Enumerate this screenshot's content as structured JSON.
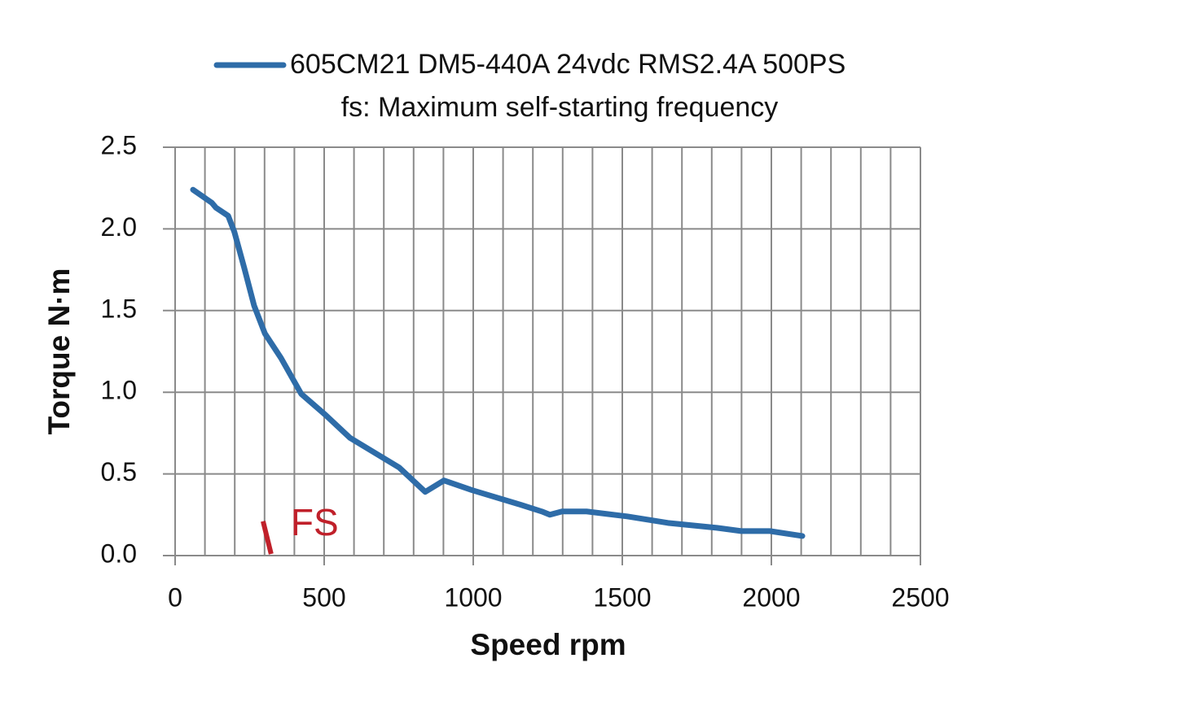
{
  "chart_data": {
    "type": "line",
    "subtitle": "fs: Maximum self-starting frequency",
    "x_label": "Speed rpm",
    "y_label": "Torque N·m",
    "xlim": [
      0,
      2500
    ],
    "ylim": [
      0,
      2.5
    ],
    "xticks": [
      0,
      500,
      1000,
      1500,
      2000,
      2500
    ],
    "xgrid": [
      0,
      100,
      200,
      300,
      400,
      500,
      600,
      700,
      800,
      900,
      1000,
      1100,
      1200,
      1300,
      1400,
      1500,
      1600,
      1700,
      1800,
      1900,
      2000,
      2100,
      2200,
      2300,
      2400,
      2500
    ],
    "yticks": [
      {
        "value": 0,
        "label": "0.0"
      },
      0.5,
      {
        "value": 1,
        "label": "1.0"
      },
      1.5,
      {
        "value": 2,
        "label": "2.0"
      },
      2.5
    ],
    "grid": true,
    "legend": "top",
    "series": [
      {
        "name": "605CM21 DM5-440A 24vdc RMS2.4A 500PS",
        "color": "#2e6ca8",
        "x": [
          60,
          123,
          137,
          178,
          199,
          232,
          265,
          301,
          355,
          423,
          505,
          587,
          751,
          839,
          902,
          997,
          1161,
          1230,
          1257,
          1298,
          1380,
          1516,
          1653,
          1817,
          1899,
          1995,
          2104
        ],
        "values": [
          2.24,
          2.16,
          2.13,
          2.08,
          1.98,
          1.76,
          1.53,
          1.36,
          1.21,
          0.99,
          0.86,
          0.72,
          0.54,
          0.39,
          0.46,
          0.4,
          0.31,
          0.27,
          0.25,
          0.27,
          0.27,
          0.24,
          0.2,
          0.17,
          0.15,
          0.15,
          0.12
        ]
      }
    ],
    "annotations": [
      {
        "text": "FS",
        "color": "#c0202a",
        "x": [
          295,
          322
        ],
        "y": [
          0.21,
          0.01
        ]
      }
    ]
  }
}
